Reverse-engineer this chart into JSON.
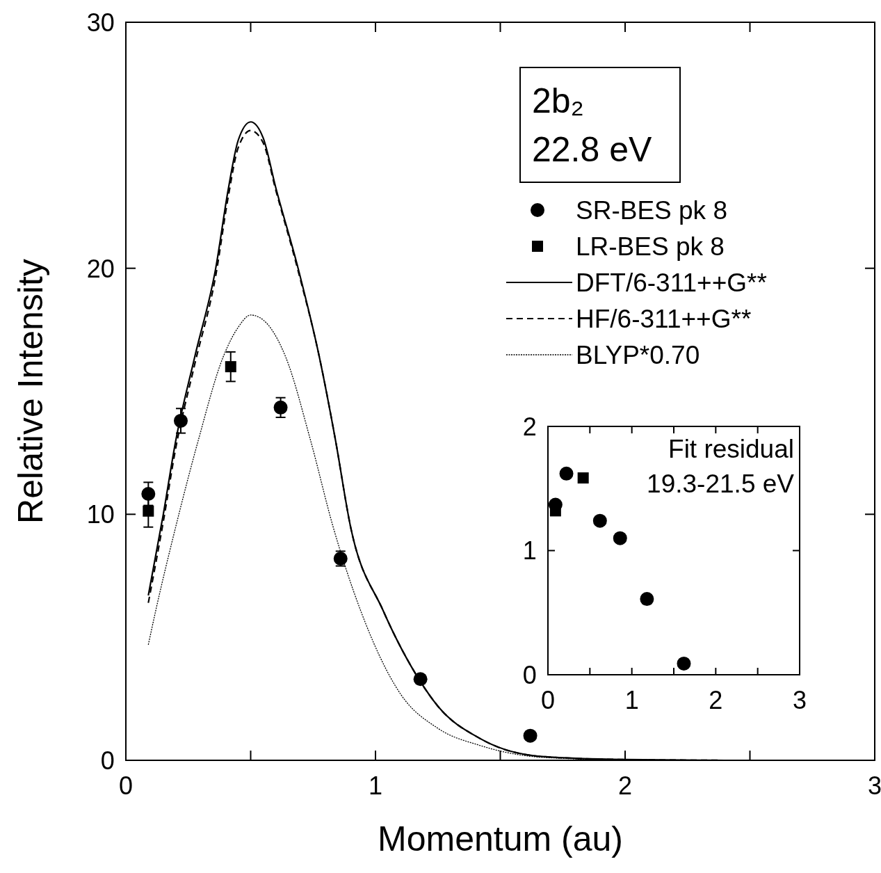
{
  "chart_data": [
    {
      "type": "scatter",
      "xlabel": "Momentum (au)",
      "ylabel": "Relative Intensity",
      "annotations": [
        "2b₂",
        "22.8 eV"
      ],
      "xlim": [
        0,
        3
      ],
      "ylim": [
        0,
        30
      ],
      "xticks": [
        0,
        {
          "value": 0.5,
          "label": null
        },
        1,
        {
          "value": 1.5,
          "label": null
        },
        2,
        {
          "value": 2.5,
          "label": null
        },
        3
      ],
      "yticks": [
        0,
        10,
        20,
        30
      ],
      "legend": "top right",
      "series": [
        {
          "name": "SR-BES pk 8",
          "marker": "circle",
          "color": "#000000",
          "x": [
            0.09,
            0.22,
            0.62,
            0.86,
            1.18,
            1.62
          ],
          "values": [
            10.83,
            13.8,
            14.34,
            8.2,
            3.3,
            1.0
          ],
          "errors": [
            0.47,
            0.5,
            0.4,
            0.3,
            null,
            null
          ]
        },
        {
          "name": "LR-BES pk 8",
          "marker": "square",
          "color": "#000000",
          "x": [
            0.09,
            0.42
          ],
          "values": [
            10.13,
            16.0
          ],
          "errors": [
            0.65,
            0.6
          ]
        },
        {
          "name": "DFT/6-311++G**",
          "type": "line",
          "line_style": "solid",
          "color": "#000000",
          "x": [
            0.09,
            0.15,
            0.2,
            0.276,
            0.36,
            0.41,
            0.45,
            0.5,
            0.55,
            0.6,
            0.69,
            0.775,
            0.84,
            0.9,
            1.03,
            1.18,
            1.25,
            1.42,
            1.67,
            2.0,
            2.4
          ],
          "values": [
            6.7,
            10.0,
            13.0,
            16.4,
            20.0,
            23.2,
            25.2,
            25.95,
            25.3,
            23.3,
            20.0,
            16.4,
            13.0,
            9.5,
            6.1,
            3.2,
            2.2,
            0.88,
            0.15,
            0.03,
            0
          ]
        },
        {
          "name": "HF/6-311++G**",
          "type": "line",
          "line_style": "dashed",
          "color": "#000000",
          "x": [
            0.09,
            0.15,
            0.2,
            0.276,
            0.36,
            0.41,
            0.45,
            0.5,
            0.55,
            0.6,
            0.69,
            0.775,
            0.84,
            0.9,
            1.03,
            1.18,
            1.25,
            1.42,
            1.67,
            2.0,
            2.4
          ],
          "values": [
            6.4,
            9.7,
            12.7,
            16.1,
            19.7,
            22.9,
            24.9,
            25.6,
            25.1,
            23.2,
            19.9,
            16.4,
            13.0,
            9.5,
            6.1,
            3.2,
            2.2,
            0.88,
            0.15,
            0.03,
            0
          ]
        },
        {
          "name": "BLYP*0.70",
          "type": "line",
          "line_style": "dotted",
          "color": "#000000",
          "x": [
            0.09,
            0.12,
            0.2,
            0.29,
            0.39,
            0.45,
            0.5,
            0.55,
            0.64,
            0.74,
            0.83,
            0.94,
            1.1,
            1.25,
            1.42,
            1.67,
            2.0,
            2.4
          ],
          "values": [
            4.7,
            6.1,
            9.5,
            13.0,
            16.4,
            17.6,
            18.1,
            17.9,
            16.4,
            13.0,
            9.5,
            6.1,
            2.7,
            1.3,
            0.6,
            0.12,
            0.02,
            0
          ]
        }
      ]
    },
    {
      "type": "scatter",
      "annotations": [
        "Fit residual",
        "19.3-21.5 eV"
      ],
      "xlim": [
        0,
        3
      ],
      "ylim": [
        0,
        2
      ],
      "xticks": [
        0,
        {
          "value": 0.5,
          "label": null
        },
        1,
        {
          "value": 1.5,
          "label": null
        },
        2,
        {
          "value": 2.5,
          "label": null
        },
        3
      ],
      "yticks": [
        0,
        1,
        2
      ],
      "series": [
        {
          "marker": "circle",
          "color": "#000000",
          "x": [
            0.09,
            0.22,
            0.62,
            0.86,
            1.18,
            1.62
          ],
          "values": [
            1.37,
            1.62,
            1.24,
            1.1,
            0.61,
            0.09
          ]
        },
        {
          "marker": "square",
          "color": "#000000",
          "x": [
            0.09,
            0.42
          ],
          "values": [
            1.32,
            1.585
          ]
        }
      ]
    }
  ]
}
